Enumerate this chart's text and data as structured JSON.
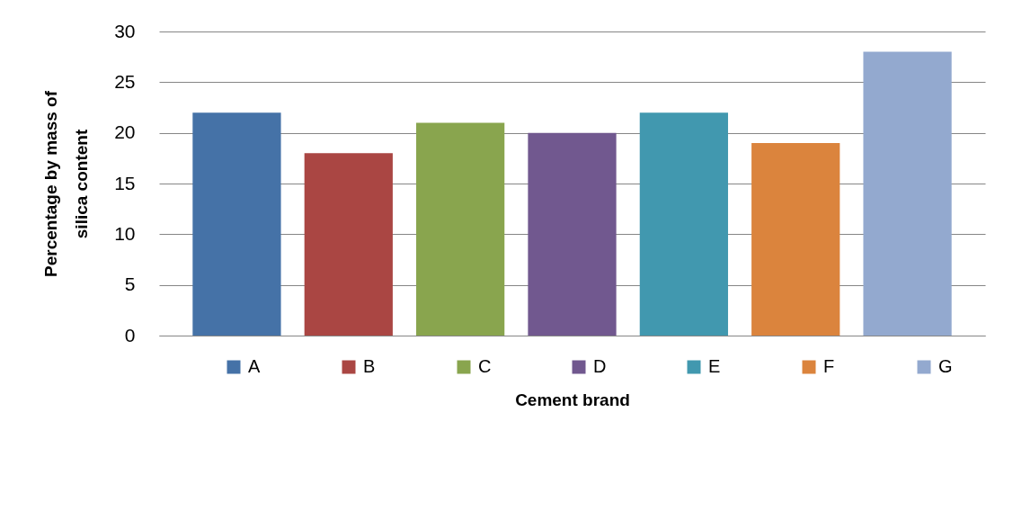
{
  "chart_data": {
    "type": "bar",
    "xlabel": "Cement brand",
    "ylabel": "Percentage by mass of silica content",
    "categories": [
      null,
      null,
      null,
      null,
      null,
      null,
      null
    ],
    "series": [
      {
        "name": "A",
        "color": "#4572a7",
        "values": [
          22,
          null,
          null,
          null,
          null,
          null,
          null
        ]
      },
      {
        "name": "B",
        "color": "#aa4643",
        "values": [
          null,
          18,
          null,
          null,
          null,
          null,
          null
        ]
      },
      {
        "name": "C",
        "color": "#89a54e",
        "values": [
          null,
          null,
          21,
          null,
          null,
          null,
          null
        ]
      },
      {
        "name": "D",
        "color": "#71588f",
        "values": [
          null,
          null,
          null,
          20,
          null,
          null,
          null
        ]
      },
      {
        "name": "E",
        "color": "#4198af",
        "values": [
          null,
          null,
          null,
          null,
          22,
          null,
          null
        ]
      },
      {
        "name": "F",
        "color": "#db843d",
        "values": [
          null,
          null,
          null,
          null,
          null,
          19,
          null
        ]
      },
      {
        "name": "G",
        "color": "#93a9cf",
        "values": [
          null,
          null,
          null,
          null,
          null,
          null,
          28
        ]
      }
    ],
    "ylim": [
      0,
      30
    ],
    "yticks": [
      0,
      5,
      10,
      15,
      20,
      25,
      30
    ],
    "grid": "y",
    "legend": "bottom",
    "tick_labels": "y"
  }
}
